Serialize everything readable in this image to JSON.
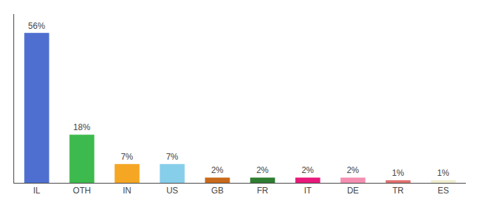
{
  "chart_data": {
    "type": "bar",
    "categories": [
      "IL",
      "OTH",
      "IN",
      "US",
      "GB",
      "FR",
      "IT",
      "DE",
      "TR",
      "ES"
    ],
    "values": [
      56,
      18,
      7,
      7,
      2,
      2,
      2,
      2,
      1,
      1
    ],
    "value_labels": [
      "56%",
      "18%",
      "7%",
      "7%",
      "2%",
      "2%",
      "2%",
      "2%",
      "1%",
      "1%"
    ],
    "colors": [
      "#4f6fd0",
      "#3dba4e",
      "#f5a623",
      "#87ceeb",
      "#c8691b",
      "#2e7d32",
      "#e8197a",
      "#f48fb1",
      "#e07070",
      "#f0edcf"
    ],
    "ylim": [
      0,
      63
    ],
    "yticks": [],
    "grid": false,
    "data_labels": true,
    "tick_labels": "x"
  }
}
